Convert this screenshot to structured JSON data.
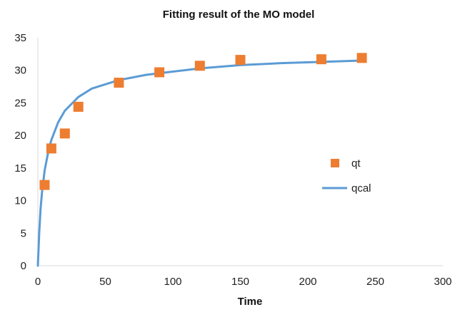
{
  "chart_data": {
    "type": "scatter",
    "title": "Fitting result of the MO model",
    "xlabel": "Time",
    "ylabel": "",
    "xlim": [
      0,
      300
    ],
    "ylim": [
      0,
      35
    ],
    "x_ticks": [
      "0",
      "50",
      "100",
      "150",
      "200",
      "250",
      "300"
    ],
    "y_ticks": [
      "0",
      "5",
      "10",
      "15",
      "20",
      "25",
      "30",
      "35"
    ],
    "grid": false,
    "legend_position": "right",
    "series": [
      {
        "name": "qt",
        "type": "scatter",
        "marker": "square",
        "color": "#ED7D31",
        "x": [
          5,
          10,
          20,
          30,
          60,
          90,
          120,
          150,
          210,
          240
        ],
        "y": [
          12.4,
          18.0,
          20.3,
          24.4,
          28.1,
          29.7,
          30.7,
          31.6,
          31.7,
          31.9
        ]
      },
      {
        "name": "qcal",
        "type": "line",
        "color": "#5B9BD5",
        "x": [
          0,
          1,
          2,
          3,
          5,
          8,
          10,
          15,
          20,
          30,
          40,
          60,
          80,
          100,
          120,
          150,
          180,
          210,
          240
        ],
        "y": [
          0,
          5.0,
          8.7,
          11.1,
          14.6,
          17.8,
          19.3,
          22.0,
          23.8,
          25.9,
          27.2,
          28.5,
          29.3,
          29.8,
          30.3,
          30.8,
          31.1,
          31.3,
          31.5
        ]
      }
    ]
  }
}
